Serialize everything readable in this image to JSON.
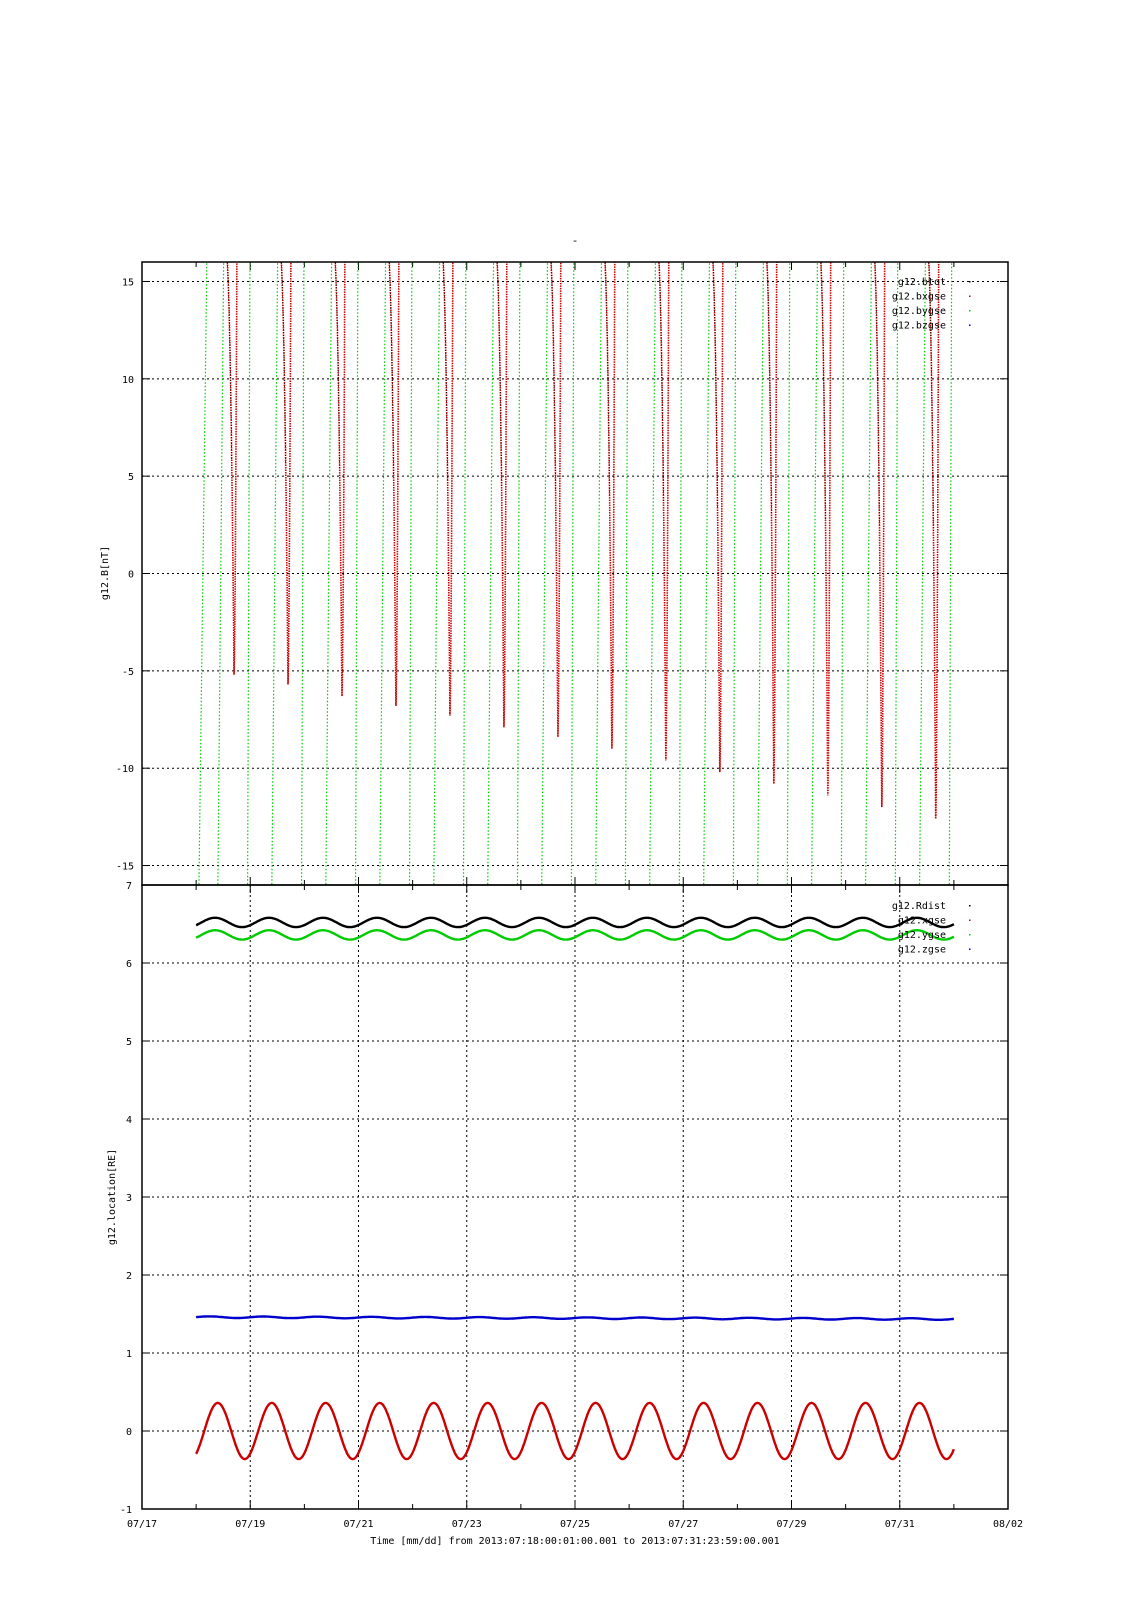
{
  "chart_data": [
    {
      "type": "scatter",
      "title": "-",
      "ylabel": "g12.B[nT]",
      "xlabel": "",
      "ylim": [
        -16,
        16
      ],
      "yticks": [
        -15,
        -10,
        -5,
        0,
        5,
        10,
        15
      ],
      "xlim_day": [
        17,
        33
      ],
      "grid": true,
      "legend_placement": "top-right",
      "series": [
        {
          "name": "g12.btot",
          "color": "#000000"
        },
        {
          "name": "g12.bxgse",
          "color": "#cc0000"
        },
        {
          "name": "g12.bygse",
          "color": "#00cc00"
        },
        {
          "name": "g12.bzgse",
          "color": "#0000cc"
        }
      ],
      "dips": {
        "start_day": 18.7,
        "period_days": 0.9973,
        "minima": [
          -5.2,
          -5.7,
          -6.3,
          -6.8,
          -7.3,
          -7.9,
          -8.4,
          -9.0,
          -9.6,
          -10.2,
          -10.8,
          -11.4,
          -12.0,
          -12.6
        ]
      }
    },
    {
      "type": "line",
      "ylabel": "g12.location[RE]",
      "xlabel": "Time [mm/dd]  from 2013:07:18:00:01:00.001  to  2013:07:31:23:59:00.001",
      "ylim": [
        -1,
        7
      ],
      "yticks": [
        -1,
        0,
        1,
        2,
        3,
        4,
        5,
        6,
        7
      ],
      "xticks": [
        "07/17",
        "07/19",
        "07/21",
        "07/23",
        "07/25",
        "07/27",
        "07/29",
        "07/31",
        "08/02"
      ],
      "xlim_day": [
        17,
        33
      ],
      "grid": true,
      "legend_placement": "top-right",
      "period_days": 0.9973,
      "series": [
        {
          "name": "g12.Rdist",
          "color": "#000000",
          "mean": 6.52,
          "amp": 0.06
        },
        {
          "name": "g12.xgse",
          "color": "#cc0000",
          "mean": 0.0,
          "amp": 0.36
        },
        {
          "name": "g12.ygse",
          "color": "#00cc00",
          "mean": 6.36,
          "amp": 0.06
        },
        {
          "name": "g12.zgse",
          "color": "#0000cc",
          "mean": 1.46,
          "amp": 0.01
        }
      ]
    }
  ]
}
